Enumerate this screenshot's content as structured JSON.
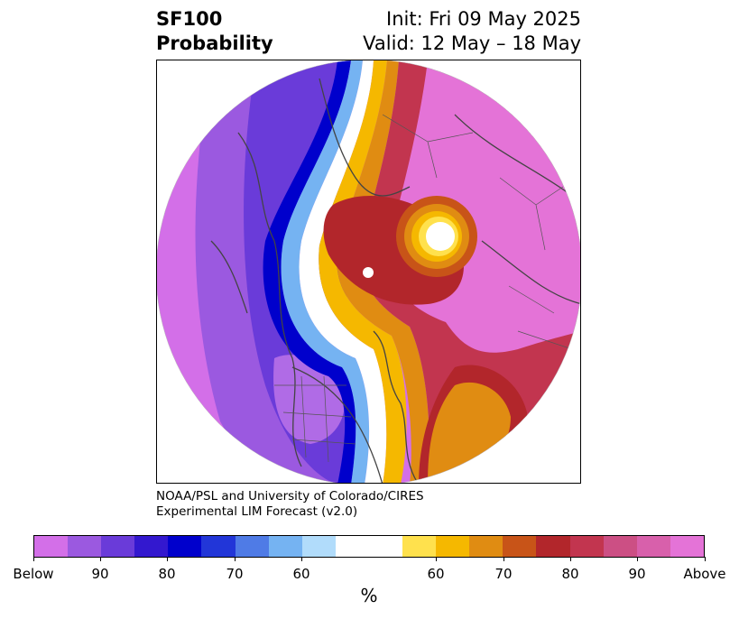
{
  "header": {
    "title_line1": "SF100",
    "title_line2": "Probability",
    "init": "Init: Fri 09 May 2025",
    "valid": "Valid: 12 May – 18 May"
  },
  "credit": {
    "line1": "NOAA/PSL and University of Colorado/CIRES",
    "line2": "Experimental LIM Forecast (v2.0)"
  },
  "colorbar": {
    "unit": "%",
    "colors": [
      "#d36fe8",
      "#9b59e0",
      "#6a3bd9",
      "#3318cf",
      "#0000cc",
      "#2236d8",
      "#4f7be6",
      "#75b3f2",
      "#b1dcfb",
      "#ffffff",
      "#ffffff",
      "#ffe14d",
      "#f5b800",
      "#e08c12",
      "#c85418",
      "#b2262b",
      "#c2354f",
      "#cc4f84",
      "#d860ab",
      "#e473d7"
    ],
    "labels": [
      "Below",
      "90",
      "80",
      "70",
      "60",
      "60",
      "70",
      "80",
      "90",
      "Above"
    ]
  },
  "map": {
    "colors": {
      "deep_below": "#6a3bd9",
      "blue": "#0000cc",
      "near_normal": "#ffffff",
      "yellow": "#f5b800",
      "red": "#b2262b",
      "pink": "#e473d7",
      "border": "#444444"
    }
  }
}
